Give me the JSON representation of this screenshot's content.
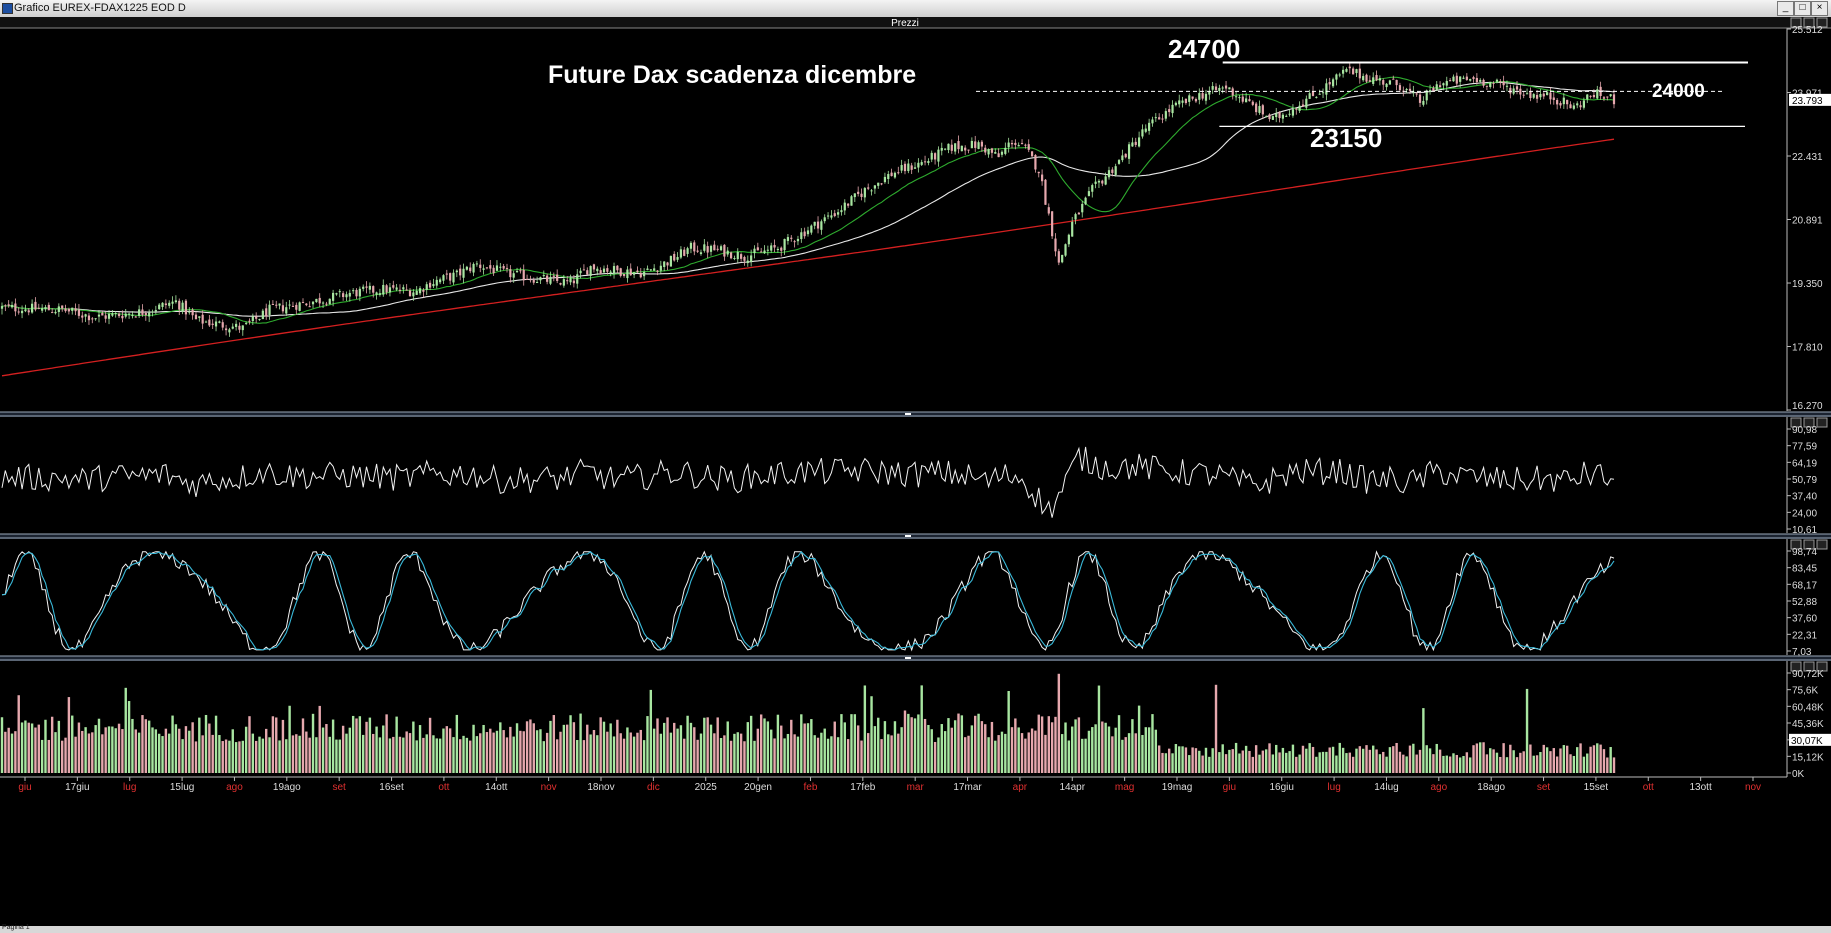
{
  "window": {
    "title": "Grafico EUREX-FDAX1225 EOD D",
    "pane_title": "Prezzi",
    "status": "Pagina 1"
  },
  "annotations": {
    "title": "Future Dax scadenza dicembre",
    "resistance_label": "24700",
    "pivot_label": "24000",
    "support_label": "23150",
    "resistance": 24700,
    "pivot": 24000,
    "support": 23150
  },
  "colors": {
    "bull": "#a8e6a1",
    "bear": "#e6a8ae",
    "sma_fast": "#2eaa2e",
    "sma_mid": "#e8e8e8",
    "sma_slow": "#d42020",
    "stoch_d": "#39b8d8",
    "grid_sep": "#9aa7b8"
  },
  "chart_data": {
    "type": "candlestick",
    "price_axis": {
      "ticks": [
        "25.512",
        "23.971",
        "22.431",
        "20.891",
        "19.350",
        "17.810",
        "16.270"
      ],
      "values": [
        25512,
        23971,
        22431,
        20891,
        19350,
        17810,
        16270
      ],
      "last_value": "23.793",
      "last": 23793
    },
    "x_axis": {
      "labels": [
        {
          "t": "giu",
          "red": true
        },
        {
          "t": "17giu",
          "red": false
        },
        {
          "t": "lug",
          "red": true
        },
        {
          "t": "15lug",
          "red": false
        },
        {
          "t": "ago",
          "red": true
        },
        {
          "t": "19ago",
          "red": false
        },
        {
          "t": "set",
          "red": true
        },
        {
          "t": "16set",
          "red": false
        },
        {
          "t": "ott",
          "red": true
        },
        {
          "t": "14ott",
          "red": false
        },
        {
          "t": "nov",
          "red": true
        },
        {
          "t": "18nov",
          "red": false
        },
        {
          "t": "dic",
          "red": true
        },
        {
          "t": "2025",
          "red": false
        },
        {
          "t": "20gen",
          "red": false
        },
        {
          "t": "feb",
          "red": true
        },
        {
          "t": "17feb",
          "red": false
        },
        {
          "t": "mar",
          "red": true
        },
        {
          "t": "17mar",
          "red": false
        },
        {
          "t": "apr",
          "red": true
        },
        {
          "t": "14apr",
          "red": false
        },
        {
          "t": "mag",
          "red": true
        },
        {
          "t": "19mag",
          "red": false
        },
        {
          "t": "giu",
          "red": true
        },
        {
          "t": "16giu",
          "red": false
        },
        {
          "t": "lug",
          "red": true
        },
        {
          "t": "14lug",
          "red": false
        },
        {
          "t": "ago",
          "red": true
        },
        {
          "t": "18ago",
          "red": false
        },
        {
          "t": "set",
          "red": true
        },
        {
          "t": "15set",
          "red": false
        },
        {
          "t": "ott",
          "red": true
        },
        {
          "t": "13ott",
          "red": false
        },
        {
          "t": "nov",
          "red": true
        }
      ]
    },
    "price_path": [
      [
        0,
        18750
      ],
      [
        18,
        18700
      ],
      [
        28,
        18520
      ],
      [
        42,
        18650
      ],
      [
        52,
        18900
      ],
      [
        58,
        18450
      ],
      [
        72,
        18250
      ],
      [
        80,
        18700
      ],
      [
        96,
        18950
      ],
      [
        104,
        19100
      ],
      [
        114,
        19200
      ],
      [
        124,
        19150
      ],
      [
        128,
        19350
      ],
      [
        136,
        19550
      ],
      [
        142,
        19800
      ],
      [
        150,
        19600
      ],
      [
        160,
        19450
      ],
      [
        170,
        19350
      ],
      [
        176,
        19750
      ],
      [
        184,
        19650
      ],
      [
        192,
        19600
      ],
      [
        200,
        19900
      ],
      [
        206,
        20200
      ],
      [
        214,
        20150
      ],
      [
        222,
        20000
      ],
      [
        232,
        20200
      ],
      [
        240,
        20600
      ],
      [
        250,
        21100
      ],
      [
        258,
        21600
      ],
      [
        266,
        22000
      ],
      [
        276,
        22300
      ],
      [
        284,
        22650
      ],
      [
        292,
        22700
      ],
      [
        298,
        22400
      ],
      [
        302,
        22800
      ],
      [
        306,
        22600
      ],
      [
        310,
        22100
      ],
      [
        313,
        21000
      ],
      [
        316,
        19800
      ],
      [
        320,
        20800
      ],
      [
        326,
        21600
      ],
      [
        334,
        22300
      ],
      [
        342,
        23100
      ],
      [
        350,
        23600
      ],
      [
        358,
        23900
      ],
      [
        366,
        24100
      ],
      [
        372,
        23750
      ],
      [
        380,
        23300
      ],
      [
        386,
        23600
      ],
      [
        394,
        24000
      ],
      [
        402,
        24500
      ],
      [
        410,
        24300
      ],
      [
        418,
        24150
      ],
      [
        424,
        23750
      ],
      [
        430,
        24200
      ],
      [
        440,
        24300
      ],
      [
        448,
        24150
      ],
      [
        456,
        23950
      ],
      [
        464,
        23850
      ],
      [
        470,
        23600
      ],
      [
        476,
        23950
      ],
      [
        482,
        23800
      ]
    ],
    "panels": [
      {
        "name": "",
        "scale_ticks": [
          "90,98",
          "77,59",
          "64,19",
          "50,79",
          "37,40",
          "24,00",
          "10,61"
        ],
        "scale_values": [
          90.98,
          77.59,
          64.19,
          50.79,
          37.4,
          24.0,
          10.61
        ]
      },
      {
        "name": "",
        "scale_ticks": [
          "98,74",
          "83,45",
          "68,17",
          "52,88",
          "37,60",
          "22,31",
          "7,03"
        ],
        "scale_values": [
          98.74,
          83.45,
          68.17,
          52.88,
          37.6,
          22.31,
          7.03
        ]
      },
      {
        "name": "",
        "scale_ticks": [
          "90,72K",
          "75,6K",
          "60,48K",
          "45,36K",
          "30,07K",
          "15,12K",
          "0K"
        ],
        "scale_values": [
          90.72,
          75.6,
          60.48,
          45.36,
          30.07,
          15.12,
          0
        ],
        "highlight": "30,07K",
        "highlight_value": 30.07
      }
    ]
  }
}
